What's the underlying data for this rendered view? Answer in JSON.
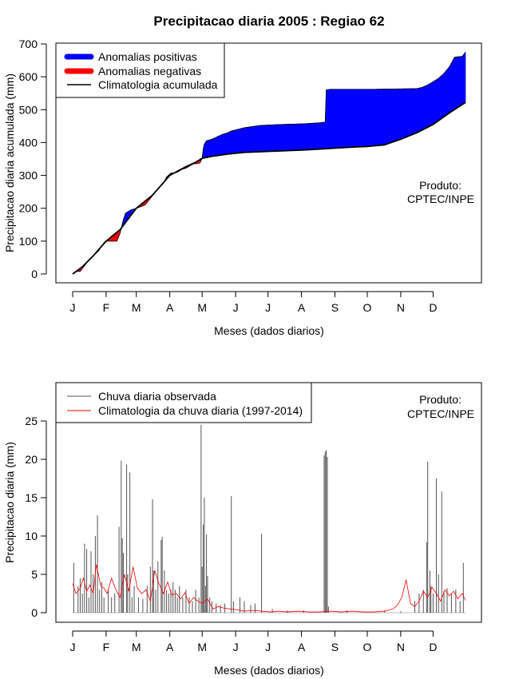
{
  "figure": {
    "title": "Precipitacao diaria 2005 : Regiao 62"
  },
  "chart_data": [
    {
      "type": "area",
      "title": "Precipitacao diaria 2005 : Regiao 62",
      "xlabel": "Meses (dados diarios)",
      "ylabel": "Precipitacao diaria acumulada (mm)",
      "xlim": [
        1,
        365
      ],
      "ylim": [
        0,
        700
      ],
      "yticks": [
        0,
        100,
        200,
        300,
        400,
        500,
        600,
        700
      ],
      "month_labels": [
        "J",
        "F",
        "M",
        "A",
        "M",
        "J",
        "J",
        "A",
        "S",
        "O",
        "N",
        "D"
      ],
      "month_days": [
        1,
        32,
        60,
        91,
        121,
        152,
        182,
        213,
        244,
        274,
        305,
        335
      ],
      "legend": {
        "position": "top-left",
        "entries": [
          {
            "label": "Anomalias positivas",
            "color": "#0000ff"
          },
          {
            "label": "Anomalias negativas",
            "color": "#ff0000"
          },
          {
            "label": "Climatologia acumulada",
            "color": "#000000"
          }
        ]
      },
      "annotation": [
        "Produto:",
        "CPTEC/INPE"
      ],
      "climatology_accumulated": {
        "x": [
          1,
          10,
          20,
          32,
          45,
          60,
          75,
          91,
          105,
          115,
          121,
          130,
          145,
          160,
          182,
          213,
          230,
          244,
          260,
          274,
          290,
          305,
          320,
          335,
          350,
          365
        ],
        "y": [
          0,
          22,
          55,
          100,
          135,
          200,
          240,
          300,
          325,
          340,
          352,
          358,
          365,
          370,
          373,
          377,
          380,
          383,
          386,
          388,
          393,
          410,
          430,
          455,
          490,
          522
        ]
      },
      "observed_accumulated": {
        "x": [
          1,
          5,
          8,
          12,
          15,
          20,
          25,
          30,
          33,
          38,
          42,
          45,
          48,
          50,
          55,
          60,
          68,
          75,
          80,
          85,
          88,
          92,
          95,
          98,
          102,
          106,
          110,
          113,
          116,
          119,
          121,
          122,
          123,
          125,
          130,
          140,
          145,
          148,
          160,
          175,
          195,
          215,
          230,
          235,
          236,
          240,
          260,
          280,
          300,
          320,
          325,
          330,
          335,
          340,
          345,
          350,
          355,
          362,
          365
        ],
        "y": [
          0,
          8,
          8,
          25,
          38,
          55,
          70,
          95,
          100,
          100,
          100,
          125,
          165,
          185,
          195,
          200,
          210,
          238,
          260,
          275,
          295,
          307,
          307,
          310,
          318,
          322,
          330,
          335,
          336,
          338,
          352,
          380,
          395,
          405,
          410,
          425,
          430,
          435,
          445,
          452,
          455,
          457,
          460,
          462,
          560,
          562,
          562,
          562,
          563,
          564,
          568,
          575,
          585,
          595,
          610,
          630,
          660,
          662,
          675
        ]
      }
    },
    {
      "type": "bar",
      "title": "",
      "xlabel": "Meses (dados diarios)",
      "ylabel": "Precipitacao diaria (mm)",
      "xlim": [
        1,
        365
      ],
      "ylim": [
        0,
        25
      ],
      "yticks": [
        0,
        5,
        10,
        15,
        20,
        25
      ],
      "month_labels": [
        "J",
        "F",
        "M",
        "A",
        "M",
        "J",
        "J",
        "A",
        "S",
        "O",
        "N",
        "D"
      ],
      "month_days": [
        1,
        32,
        60,
        91,
        121,
        152,
        182,
        213,
        244,
        274,
        305,
        335
      ],
      "legend": {
        "position": "top-left",
        "entries": [
          {
            "label": "Chuva diaria observada",
            "color": "#555555"
          },
          {
            "label": "Climatologia da chuva diaria (1997-2014)",
            "color": "#ff0000"
          }
        ]
      },
      "annotation": [
        "Produto:",
        "CPTEC/INPE"
      ],
      "observed_daily": {
        "day": [
          2,
          6,
          8,
          10,
          12,
          14,
          16,
          18,
          20,
          22,
          24,
          26,
          28,
          30,
          34,
          37,
          40,
          44,
          46,
          47,
          48,
          51,
          52,
          54,
          56,
          58,
          62,
          66,
          70,
          73,
          75,
          76,
          78,
          80,
          83,
          84,
          86,
          88,
          90,
          92,
          94,
          96,
          98,
          100,
          103,
          106,
          109,
          112,
          115,
          118,
          120,
          121,
          122,
          123,
          124,
          125,
          126,
          128,
          130,
          134,
          138,
          142,
          148,
          150,
          156,
          160,
          166,
          170,
          176,
          186,
          200,
          215,
          234,
          235,
          236,
          237,
          238,
          255,
          290,
          305,
          318,
          322,
          326,
          329,
          330,
          332,
          333,
          335,
          338,
          340,
          343,
          345,
          348,
          352,
          356,
          360,
          363
        ],
        "value": [
          6.5,
          3.5,
          4.5,
          2.5,
          9.0,
          8.3,
          2.0,
          8.0,
          5.0,
          10.0,
          12.7,
          3.0,
          4.0,
          2.0,
          3.0,
          2.0,
          2.5,
          11.2,
          19.8,
          9.7,
          7.8,
          19.3,
          5.0,
          18.3,
          2.0,
          3.5,
          2.0,
          1.8,
          3.5,
          6.0,
          14.8,
          5.5,
          3.0,
          6.7,
          9.5,
          9.9,
          5.5,
          3.0,
          2.5,
          3.0,
          4.0,
          3.0,
          2.0,
          3.5,
          2.0,
          3.0,
          2.0,
          1.5,
          3.0,
          2.0,
          24.5,
          6.0,
          11.5,
          15.0,
          3.5,
          10.2,
          4.8,
          2.0,
          1.5,
          1.2,
          1.0,
          1.2,
          15.2,
          1.5,
          2.0,
          1.5,
          1.0,
          1.2,
          10.3,
          0.5,
          0.3,
          0.3,
          20.5,
          21.0,
          21.2,
          20.3,
          0.8,
          0.3,
          0.3,
          0.2,
          1.5,
          2.5,
          3.0,
          9.2,
          19.7,
          5.5,
          3.5,
          2.5,
          17.5,
          5.0,
          15.8,
          2.8,
          3.2,
          2.5,
          3.0,
          1.5,
          6.5
        ]
      },
      "climatology_daily": {
        "x": [
          1,
          4,
          8,
          11,
          14,
          17,
          20,
          23,
          27,
          30,
          33,
          37,
          41,
          45,
          49,
          53,
          57,
          61,
          65,
          69,
          73,
          77,
          81,
          85,
          89,
          93,
          97,
          101,
          105,
          109,
          113,
          117,
          121,
          126,
          131,
          136,
          141,
          146,
          152,
          160,
          168,
          176,
          184,
          192,
          200,
          210,
          220,
          230,
          240,
          250,
          260,
          270,
          280,
          290,
          298,
          302,
          306,
          310,
          314,
          318,
          322,
          326,
          330,
          334,
          338,
          342,
          346,
          350,
          354,
          358,
          362,
          365
        ],
        "y": [
          3.8,
          2.5,
          3.2,
          4.5,
          2.8,
          3.6,
          2.5,
          6.3,
          3.5,
          3.2,
          2.5,
          4.5,
          3.0,
          2.0,
          5.0,
          2.8,
          6.0,
          3.2,
          2.5,
          3.0,
          1.5,
          5.5,
          3.8,
          2.5,
          4.0,
          2.3,
          2.5,
          1.8,
          2.6,
          1.2,
          2.0,
          1.5,
          1.2,
          1.8,
          0.5,
          0.8,
          0.6,
          0.5,
          0.4,
          0.2,
          0.3,
          0.2,
          0.1,
          0.2,
          0.1,
          0.2,
          0.1,
          0.1,
          0.2,
          0.1,
          0.2,
          0.1,
          0.1,
          0.2,
          0.5,
          1.0,
          2.0,
          4.3,
          1.2,
          0.8,
          1.5,
          2.8,
          2.0,
          3.3,
          2.5,
          1.5,
          3.0,
          2.2,
          2.8,
          1.8,
          2.5,
          1.6
        ]
      }
    }
  ]
}
